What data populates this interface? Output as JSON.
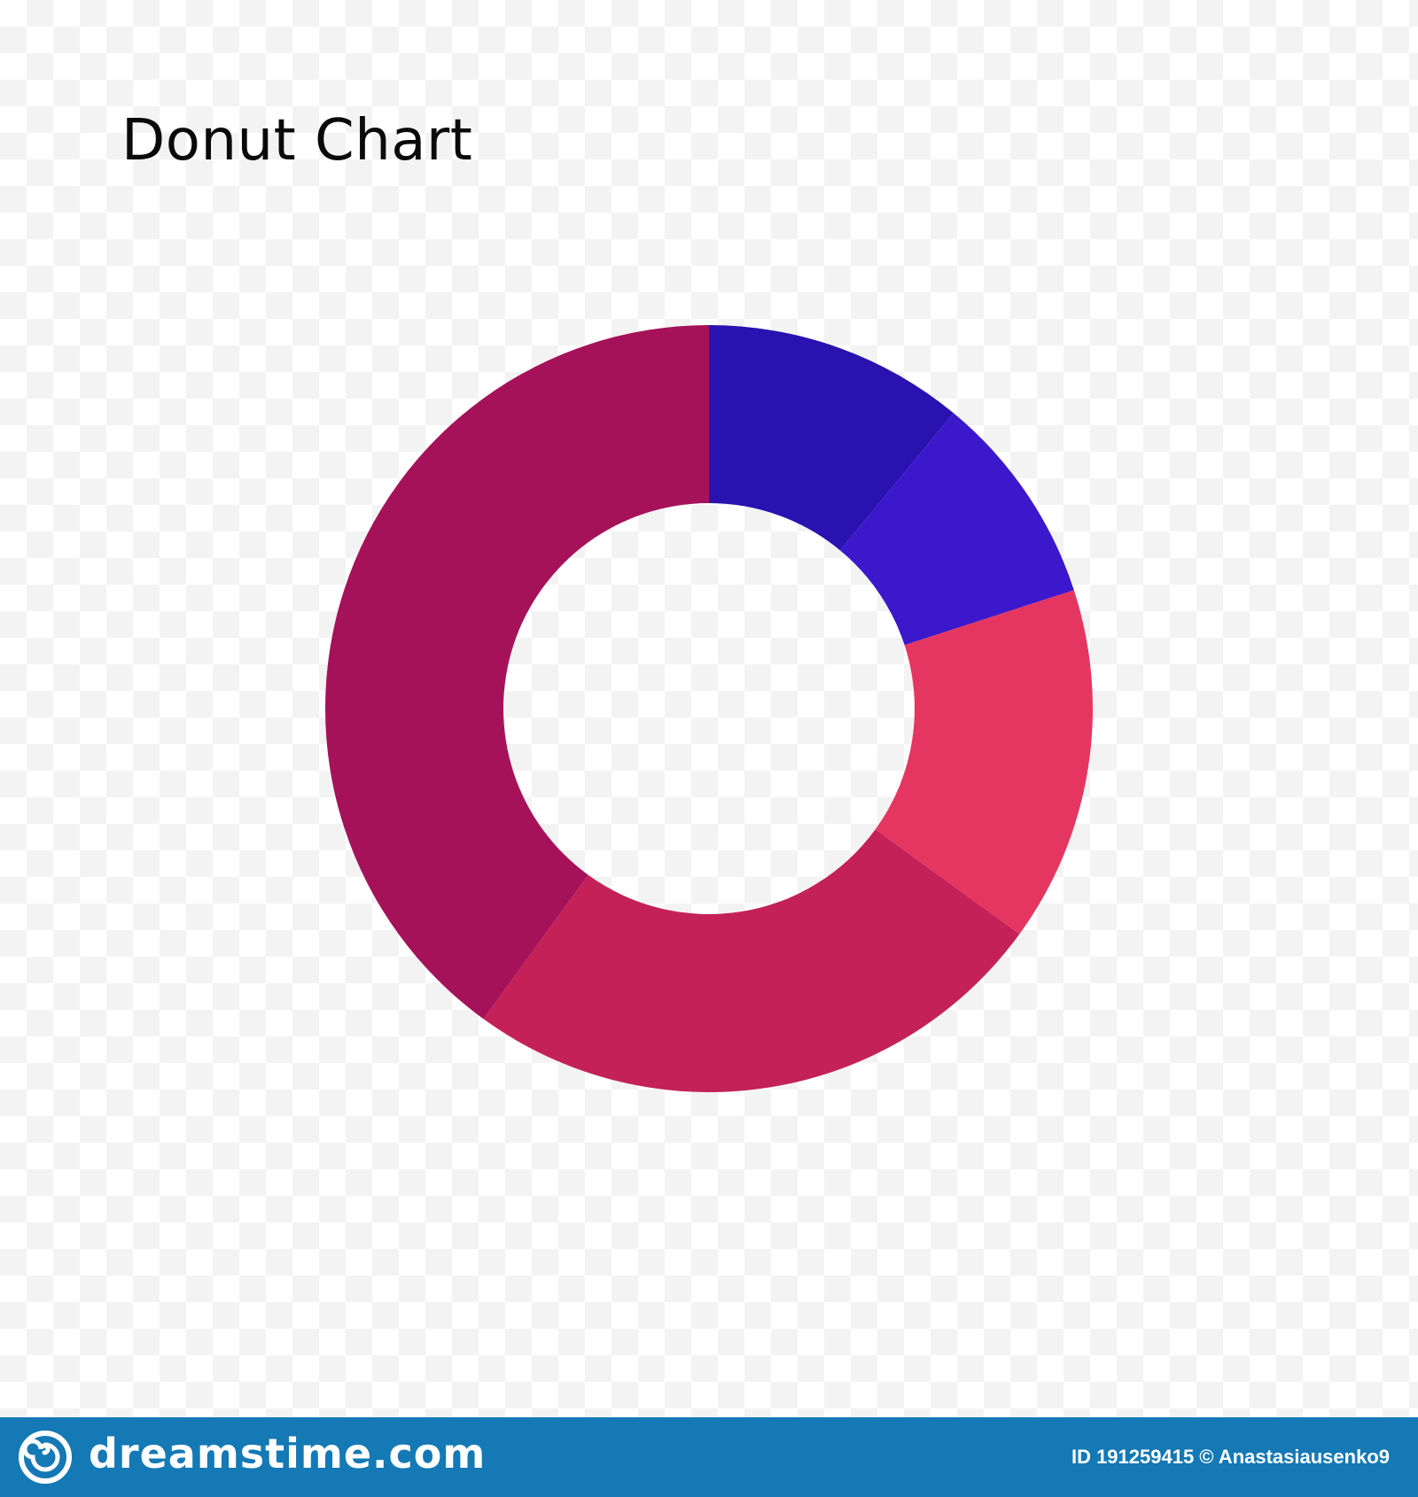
{
  "chart_data": {
    "type": "pie",
    "title": "Donut Chart",
    "donut": true,
    "slices": [
      {
        "value": 11,
        "color": "#2a12b0"
      },
      {
        "value": 9,
        "color": "#3b18cc"
      },
      {
        "value": 15,
        "color": "#e53662"
      },
      {
        "value": 25,
        "color": "#c42159"
      },
      {
        "value": 40,
        "color": "#a5125a"
      }
    ]
  },
  "footer": {
    "brand": "dreamstime.com",
    "credit": "ID 191259415 © Anastasiausenko9",
    "background": "#1479b5"
  }
}
